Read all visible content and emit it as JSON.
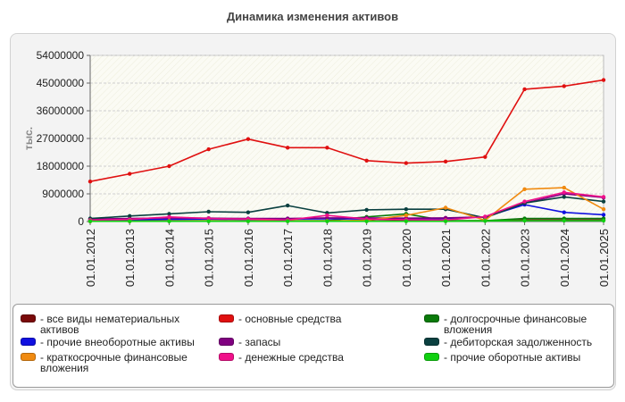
{
  "chart_data": {
    "type": "line",
    "title": "Динамика изменения активов",
    "ylabel": "тыс.",
    "xlabel": "",
    "ylim": [
      0,
      54000000
    ],
    "yticks": [
      "0",
      "9000000",
      "18000000",
      "27000000",
      "36000000",
      "45000000",
      "54000000"
    ],
    "ytick_values": [
      0,
      9000000,
      18000000,
      27000000,
      36000000,
      45000000,
      54000000
    ],
    "categories": [
      "01.01.2012",
      "01.01.2013",
      "01.01.2014",
      "01.01.2015",
      "01.01.2016",
      "01.01.2017",
      "01.01.2018",
      "01.01.2019",
      "01.01.2020",
      "01.01.2021",
      "01.01.2022",
      "01.01.2023",
      "01.01.2024",
      "01.01.2025"
    ],
    "grid": true,
    "legend_position": "bottom",
    "series": [
      {
        "name": "- все виды нематериальных активов",
        "color": "#7a0a0a",
        "values": [
          100000,
          150000,
          180000,
          200000,
          200000,
          200000,
          200000,
          200000,
          200000,
          200000,
          300000,
          500000,
          500000,
          500000
        ]
      },
      {
        "name": "- основные средства",
        "color": "#e01010",
        "values": [
          13000000,
          15500000,
          18000000,
          23500000,
          26800000,
          24000000,
          24000000,
          19800000,
          19000000,
          19500000,
          21000000,
          43000000,
          44000000,
          46000000
        ]
      },
      {
        "name": "- долгосрочные финансовые вложения",
        "color": "#0a7a0a",
        "values": [
          300000,
          300000,
          300000,
          300000,
          300000,
          300000,
          300000,
          1500000,
          2500000,
          300000,
          300000,
          1000000,
          1000000,
          1000000
        ]
      },
      {
        "name": "- прочие внеоборотные активы",
        "color": "#1010e0",
        "values": [
          500000,
          600000,
          700000,
          800000,
          700000,
          800000,
          900000,
          800000,
          900000,
          1000000,
          1500000,
          5500000,
          3000000,
          2200000
        ]
      },
      {
        "name": "- запасы",
        "color": "#800080",
        "values": [
          800000,
          1000000,
          1200000,
          1100000,
          1000000,
          1000000,
          1200000,
          1200000,
          1100000,
          1200000,
          1500000,
          6000000,
          9000000,
          7800000
        ]
      },
      {
        "name": "- дебиторская задолженность",
        "color": "#0a4040",
        "values": [
          1000000,
          1800000,
          2500000,
          3200000,
          3000000,
          5200000,
          2800000,
          3800000,
          4000000,
          4000000,
          1200000,
          6000000,
          8000000,
          6500000
        ]
      },
      {
        "name": "- краткосрочные финансовые вложения",
        "color": "#f08a10",
        "values": [
          100000,
          100000,
          200000,
          200000,
          200000,
          200000,
          200000,
          400000,
          2000000,
          4500000,
          400000,
          10500000,
          11000000,
          4000000
        ]
      },
      {
        "name": "- денежные средства",
        "color": "#f0108a",
        "values": [
          500000,
          700000,
          1500000,
          1000000,
          800000,
          500000,
          2000000,
          800000,
          600000,
          500000,
          1600000,
          6500000,
          9500000,
          8000000
        ]
      },
      {
        "name": "- прочие оборотные активы",
        "color": "#10d010",
        "values": [
          100000,
          100000,
          100000,
          100000,
          100000,
          100000,
          100000,
          100000,
          100000,
          100000,
          200000,
          300000,
          300000,
          300000
        ]
      }
    ]
  },
  "legend_layout": [
    0,
    3,
    6,
    1,
    4,
    7,
    2,
    5,
    8
  ]
}
